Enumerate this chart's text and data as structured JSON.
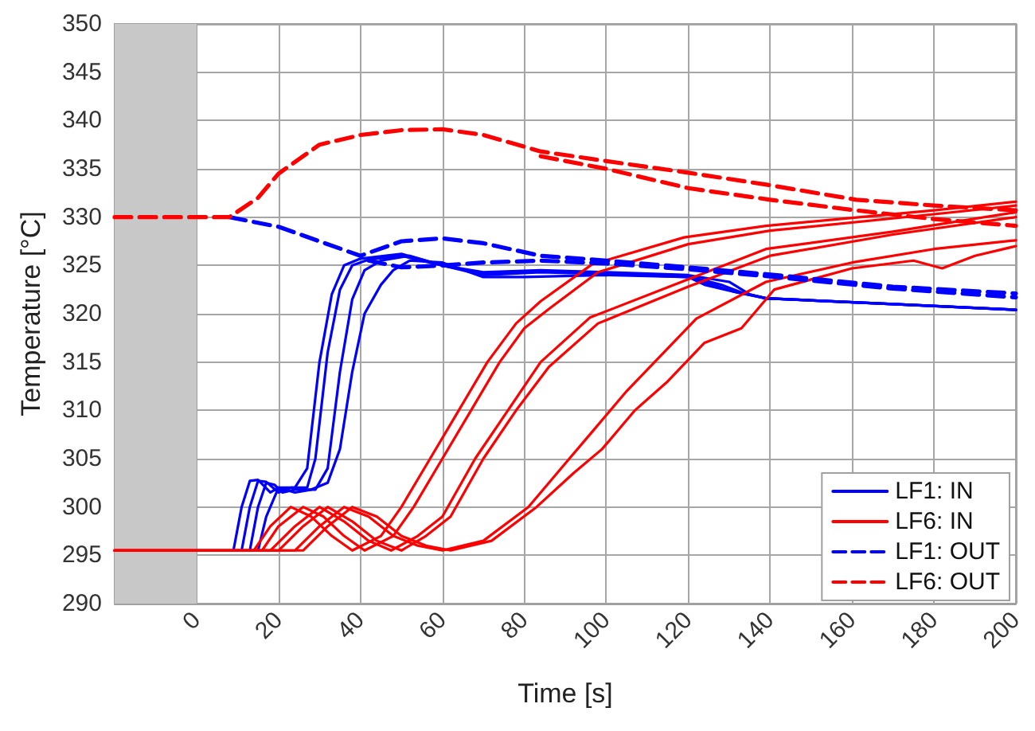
{
  "chart_data": {
    "type": "line",
    "xlabel": "Time [s]",
    "ylabel": "Temperature [°C]",
    "xlim": [
      -20,
      200
    ],
    "ylim": [
      290,
      350
    ],
    "xticks": [
      0,
      20,
      40,
      60,
      80,
      100,
      120,
      140,
      160,
      180,
      200
    ],
    "yticks": [
      290,
      295,
      300,
      305,
      310,
      315,
      320,
      325,
      330,
      335,
      340,
      345,
      350
    ],
    "grid": true,
    "legend": "bottom right",
    "marker": "none",
    "bands": [
      {
        "axis": "x",
        "from": -20,
        "to": 0,
        "color": "#c8c8c8"
      }
    ],
    "series": [
      {
        "name": "LF1: IN",
        "color": "#0000ff",
        "line_style": "solid",
        "x": [
          9,
          11,
          13,
          15,
          18,
          20,
          24,
          27,
          30,
          33,
          36,
          40,
          50,
          60,
          70,
          84,
          100,
          120,
          130,
          135,
          139,
          170,
          200
        ],
        "values": [
          295.5,
          300,
          302.7,
          302.8,
          301.5,
          302,
          302,
          304,
          315,
          322,
          325,
          325.7,
          326.2,
          325,
          324.3,
          324.5,
          324.3,
          324,
          323.3,
          322,
          321.6,
          321,
          320.4
        ]
      },
      {
        "color": "#0000ff",
        "line_style": "solid",
        "x": [
          11,
          13,
          15,
          17,
          20,
          23,
          27,
          29,
          32,
          35,
          38,
          42,
          50,
          60,
          70,
          84,
          100,
          120,
          128,
          133,
          139,
          170,
          200
        ],
        "values": [
          295.5,
          300,
          302.7,
          302.6,
          301.5,
          302,
          302,
          305,
          316,
          322.5,
          325,
          325.6,
          326,
          325,
          324.2,
          324.4,
          324.2,
          323.9,
          323,
          322.2,
          321.6,
          321,
          320.4
        ]
      },
      {
        "color": "#0000ff",
        "line_style": "solid",
        "x": [
          13,
          15,
          17,
          19,
          21,
          24,
          29,
          32,
          35,
          38,
          41,
          45,
          52,
          60,
          70,
          84,
          100,
          120,
          126,
          131,
          139,
          170,
          200
        ],
        "values": [
          295.5,
          300,
          302.5,
          302.3,
          301.5,
          301.8,
          301.8,
          304,
          314,
          321.5,
          324.5,
          325.5,
          326,
          325,
          324,
          324.3,
          324.1,
          323.8,
          323,
          322.3,
          321.6,
          321,
          320.4
        ]
      },
      {
        "color": "#0000ff",
        "line_style": "solid",
        "x": [
          15,
          17,
          20,
          24,
          28,
          32,
          35,
          38,
          41,
          45,
          48,
          52,
          60,
          70,
          80,
          100,
          120,
          124,
          130,
          139,
          170,
          200
        ],
        "values": [
          295.5,
          299,
          302,
          301.5,
          301.8,
          302.5,
          306,
          314,
          320,
          323,
          324.5,
          325.5,
          325.3,
          323.8,
          323.8,
          324,
          323.8,
          323,
          322.4,
          321.6,
          321,
          320.4
        ]
      },
      {
        "name": "LF6: IN",
        "color": "#ff0000",
        "line_style": "solid",
        "x": [
          -20,
          14,
          18,
          23,
          28,
          33,
          38,
          45,
          50,
          57,
          64,
          71,
          78,
          84,
          96.5,
          119,
          139,
          180,
          200
        ],
        "values": [
          295.5,
          295.5,
          298,
          300,
          299,
          297,
          295.5,
          297,
          300,
          305,
          310,
          315,
          319,
          321.3,
          325.1,
          327.9,
          329.1,
          330.7,
          331.6
        ]
      },
      {
        "color": "#ff0000",
        "line_style": "solid",
        "x": [
          -20,
          16,
          20,
          26,
          31,
          36,
          41,
          48,
          53,
          60,
          67,
          74,
          80,
          86,
          98,
          120,
          140,
          180,
          200
        ],
        "values": [
          295.5,
          295.5,
          298,
          300,
          299,
          297,
          295.5,
          297,
          300,
          305,
          310,
          315,
          318.5,
          320.5,
          324.3,
          327.2,
          328.6,
          330.3,
          331.2
        ]
      },
      {
        "color": "#ff0000",
        "line_style": "solid",
        "x": [
          -20,
          18,
          24,
          30,
          36,
          42,
          47.5,
          54,
          60,
          68,
          76,
          84,
          96,
          119,
          139,
          170,
          200
        ],
        "values": [
          295.5,
          295.5,
          298,
          300,
          298.5,
          296.5,
          295.5,
          297,
          299,
          305,
          310,
          315,
          319.6,
          323.4,
          326.7,
          328.5,
          330.5
        ]
      },
      {
        "color": "#ff0000",
        "line_style": "solid",
        "x": [
          -20,
          20,
          26,
          32,
          38,
          44,
          50,
          56,
          62,
          70,
          78,
          86,
          98,
          120,
          140,
          170,
          200
        ],
        "values": [
          295.5,
          295.5,
          298,
          300,
          298.5,
          296.5,
          295.5,
          297,
          299,
          305,
          310,
          314.5,
          319,
          322.8,
          326,
          328.2,
          330
        ]
      },
      {
        "color": "#ff0000",
        "line_style": "solid",
        "x": [
          -20,
          24,
          30,
          36,
          42,
          48,
          54,
          60,
          70,
          81,
          90,
          97,
          105,
          122,
          139,
          160,
          180,
          200
        ],
        "values": [
          295.5,
          295.5,
          298,
          300,
          299,
          297,
          296,
          295.5,
          296.5,
          300,
          304.5,
          308,
          312,
          319.5,
          323.3,
          325.3,
          326.7,
          327.6
        ]
      },
      {
        "color": "#ff0000",
        "line_style": "solid",
        "x": [
          -20,
          26,
          32,
          38,
          44,
          50,
          56,
          62,
          72,
          83,
          92,
          99,
          107,
          115,
          124,
          133,
          141,
          160,
          175,
          182,
          190,
          200
        ],
        "values": [
          295.5,
          295.5,
          298,
          300,
          299,
          297,
          296,
          295.5,
          296.5,
          300,
          303.5,
          306,
          310,
          313,
          317,
          318.5,
          322.5,
          324.7,
          325.5,
          324.7,
          326,
          327
        ]
      },
      {
        "name": "LF1: OUT",
        "color": "#0000ff",
        "line_style": "dashed",
        "x": [
          8,
          20,
          30,
          40,
          50,
          60,
          70,
          84,
          100,
          120,
          139,
          170,
          200
        ],
        "values": [
          330,
          329,
          327.5,
          326,
          327.5,
          327.8,
          327.3,
          326,
          325.5,
          324.8,
          324.1,
          322.8,
          322.1
        ]
      },
      {
        "color": "#0000ff",
        "line_style": "dashed",
        "x": [
          42,
          50,
          60,
          70,
          84,
          100,
          120,
          139,
          170,
          200
        ],
        "values": [
          325.5,
          324.8,
          325,
          325.3,
          325.5,
          325.2,
          324.6,
          323.9,
          322.6,
          321.7
        ]
      },
      {
        "name": "LF6: OUT",
        "color": "#ff0000",
        "line_style": "dashed",
        "x": [
          -20,
          8,
          15,
          20,
          30,
          40,
          50,
          60,
          70,
          84,
          100,
          120,
          140,
          161,
          180,
          200
        ],
        "values": [
          330,
          330,
          332,
          334.5,
          337.5,
          338.5,
          339,
          339.1,
          338.5,
          336.8,
          335.8,
          334.6,
          333.3,
          331.8,
          331.2,
          330.7
        ]
      },
      {
        "color": "#ff0000",
        "line_style": "dashed",
        "x": [
          84,
          100,
          120,
          140,
          161,
          180,
          200
        ],
        "values": [
          336.3,
          335,
          333,
          331.8,
          330.7,
          329.8,
          329.1
        ]
      }
    ]
  }
}
